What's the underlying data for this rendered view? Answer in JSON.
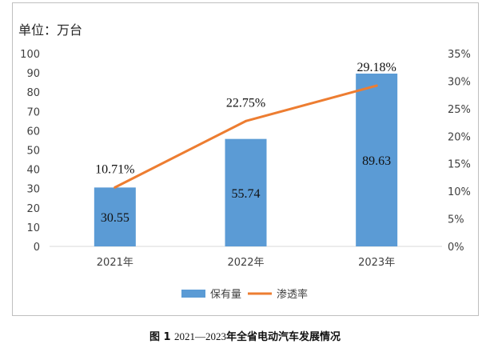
{
  "unit_label": "单位：万台",
  "caption_prefix": "图 1",
  "caption_range": "2021—2023",
  "caption_title": "年全省电动汽车发展情况",
  "chart_data": {
    "type": "bar+line",
    "categories": [
      "2021年",
      "2022年",
      "2023年"
    ],
    "series": [
      {
        "name": "保有量",
        "type": "bar",
        "axis": "left",
        "color": "#5b9bd5",
        "values": [
          30.55,
          55.74,
          89.63
        ],
        "labels": [
          "30.55",
          "55.74",
          "89.63"
        ]
      },
      {
        "name": "渗透率",
        "type": "line",
        "axis": "right",
        "color": "#ed7d31",
        "values": [
          10.71,
          22.75,
          29.18
        ],
        "labels": [
          "10.71%",
          "22.75%",
          "29.18%"
        ]
      }
    ],
    "y_left": {
      "min": 0,
      "max": 100,
      "step": 10,
      "ticks": [
        "0",
        "10",
        "20",
        "30",
        "40",
        "50",
        "60",
        "70",
        "80",
        "90",
        "100"
      ]
    },
    "y_right": {
      "min": 0,
      "max": 35,
      "step": 5,
      "ticks": [
        "0%",
        "5%",
        "10%",
        "15%",
        "20%",
        "25%",
        "30%",
        "35%"
      ]
    },
    "legend_position": "bottom",
    "grid": false
  }
}
